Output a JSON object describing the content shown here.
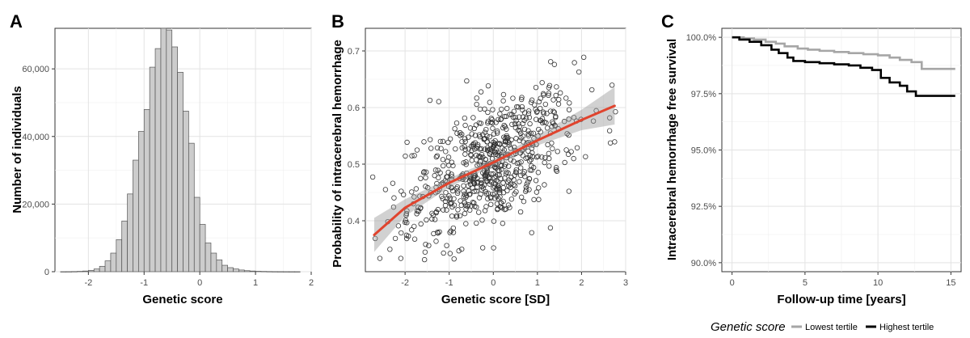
{
  "chart_data": [
    {
      "panel_label": "A",
      "type": "bar",
      "xlabel": "Genetic score",
      "ylabel": "Number of individuals",
      "xlim": [
        -2.6,
        2.0
      ],
      "ylim": [
        0,
        72000
      ],
      "x_ticks": [
        "-2",
        "-1",
        "0",
        "1",
        "2"
      ],
      "y_ticks": [
        "0",
        "20,000",
        "40,000",
        "60,000"
      ],
      "bin_width": 0.1,
      "bins_start": [
        -2.5,
        -2.4,
        -2.3,
        -2.2,
        -2.1,
        -2.0,
        -1.9,
        -1.8,
        -1.7,
        -1.6,
        -1.5,
        -1.4,
        -1.3,
        -1.2,
        -1.1,
        -1.0,
        -0.9,
        -0.8,
        -0.7,
        -0.6,
        -0.5,
        -0.4,
        -0.3,
        -0.2,
        -0.1,
        0.0,
        0.1,
        0.2,
        0.3,
        0.4,
        0.5,
        0.6,
        0.7,
        0.8,
        0.9,
        1.0,
        1.1,
        1.2,
        1.3,
        1.4,
        1.5,
        1.6,
        1.7
      ],
      "values": [
        10,
        20,
        50,
        100,
        200,
        400,
        800,
        1600,
        3200,
        5500,
        9500,
        15000,
        23000,
        33000,
        41500,
        48000,
        60500,
        66000,
        72000,
        71500,
        66500,
        59000,
        47500,
        38000,
        22000,
        14000,
        8500,
        5500,
        3500,
        1900,
        1200,
        800,
        500,
        300,
        200,
        120,
        80,
        50,
        30,
        20,
        10,
        5,
        2
      ],
      "grid": true
    },
    {
      "panel_label": "B",
      "type": "scatter",
      "xlabel": "Genetic score [SD]",
      "ylabel": "Probability of intracerebral hemorrhage",
      "xlim": [
        -2.9,
        3.0
      ],
      "ylim": [
        0.31,
        0.74
      ],
      "x_ticks": [
        "-2",
        "-1",
        "0",
        "1",
        "2",
        "3"
      ],
      "y_ticks": [
        "0.4",
        "0.5",
        "0.6",
        "0.7"
      ],
      "points_shown": 700,
      "fit_line": {
        "color": "#e0442e",
        "x": [
          -2.7,
          -2.0,
          -1.0,
          0.0,
          1.0,
          2.0,
          2.75
        ],
        "y": [
          0.375,
          0.423,
          0.467,
          0.503,
          0.542,
          0.578,
          0.603
        ],
        "ci_lower": [
          0.345,
          0.408,
          0.459,
          0.497,
          0.533,
          0.56,
          0.57
        ],
        "ci_upper": [
          0.405,
          0.438,
          0.475,
          0.509,
          0.551,
          0.596,
          0.636
        ]
      },
      "grid": true
    },
    {
      "panel_label": "C",
      "type": "line",
      "xlabel": "Follow-up time [years]",
      "ylabel": "Intracerebral hemorrhage free survival",
      "xlim": [
        -0.7,
        15.7
      ],
      "ylim": [
        89.6,
        100.4
      ],
      "x_ticks": [
        "0",
        "5",
        "10",
        "15"
      ],
      "y_ticks": [
        "90.0%",
        "92.5%",
        "95.0%",
        "97.5%",
        "100.0%"
      ],
      "legend_title": "Genetic score",
      "legend_position": "bottom",
      "series": [
        {
          "name": "Lowest tertile",
          "color": "#a6a6a6",
          "x": [
            0,
            0.8,
            1.5,
            2.3,
            3.0,
            3.6,
            4.5,
            5.2,
            6.0,
            7.0,
            8.0,
            9.0,
            10.0,
            10.8,
            11.5,
            12.3,
            13.0,
            15.3
          ],
          "y": [
            100.0,
            99.95,
            99.9,
            99.8,
            99.72,
            99.6,
            99.5,
            99.45,
            99.4,
            99.35,
            99.3,
            99.25,
            99.2,
            99.1,
            99.0,
            98.9,
            98.6,
            98.6
          ]
        },
        {
          "name": "Highest tertile",
          "color": "#000000",
          "x": [
            0,
            0.5,
            1.2,
            2.0,
            2.7,
            3.2,
            3.8,
            4.2,
            5.0,
            6.0,
            7.0,
            8.0,
            8.8,
            9.6,
            10.2,
            10.8,
            11.5,
            12.0,
            12.6,
            15.3
          ],
          "y": [
            100.0,
            99.9,
            99.8,
            99.65,
            99.45,
            99.3,
            99.1,
            98.95,
            98.9,
            98.85,
            98.8,
            98.75,
            98.65,
            98.55,
            98.2,
            98.0,
            97.85,
            97.6,
            97.4,
            97.4
          ]
        }
      ],
      "grid": true
    }
  ]
}
